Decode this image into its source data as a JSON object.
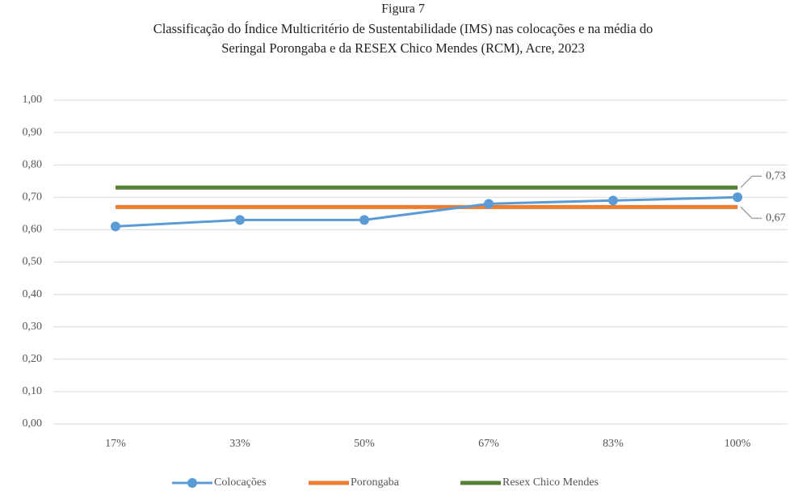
{
  "chart_data": {
    "type": "line",
    "title": "Figura 7",
    "subtitle": [
      "Classificação do Índice Multicritério de Sustentabilidade (IMS) nas colocações e na média do",
      "Seringal Porongaba e da RESEX Chico Mendes (RCM), Acre, 2023"
    ],
    "categories": [
      "17%",
      "33%",
      "50%",
      "67%",
      "83%",
      "100%"
    ],
    "series": [
      {
        "name": "Colocações",
        "color": "#5b9bd5",
        "marker": true,
        "values": [
          0.61,
          0.63,
          0.63,
          0.68,
          0.69,
          0.7
        ]
      },
      {
        "name": "Porongaba",
        "color": "#ed7d31",
        "marker": false,
        "values": [
          0.67,
          0.67,
          0.67,
          0.67,
          0.67,
          0.67
        ],
        "value_labels": [
          null,
          null,
          null,
          null,
          null,
          "0,67"
        ]
      },
      {
        "name": "Resex Chico Mendes",
        "color": "#548235",
        "marker": false,
        "values": [
          0.73,
          0.73,
          0.73,
          0.73,
          0.73,
          0.73
        ],
        "value_labels": [
          null,
          null,
          null,
          null,
          null,
          "0,73"
        ]
      }
    ],
    "ylim": [
      0,
      1
    ],
    "yticks": [
      {
        "value": 0,
        "label": "0,00"
      },
      {
        "value": 0.1,
        "label": "0,10"
      },
      {
        "value": 0.2,
        "label": "0,20"
      },
      {
        "value": 0.3,
        "label": "0,30"
      },
      {
        "value": 0.4,
        "label": "0,40"
      },
      {
        "value": 0.5,
        "label": "0,50"
      },
      {
        "value": 0.6,
        "label": "0,60"
      },
      {
        "value": 0.7,
        "label": "0,70"
      },
      {
        "value": 0.8,
        "label": "0,80"
      },
      {
        "value": 0.9,
        "label": "0,90"
      },
      {
        "value": 1,
        "label": "1,00"
      }
    ],
    "grid": true,
    "legend": "bottom"
  }
}
